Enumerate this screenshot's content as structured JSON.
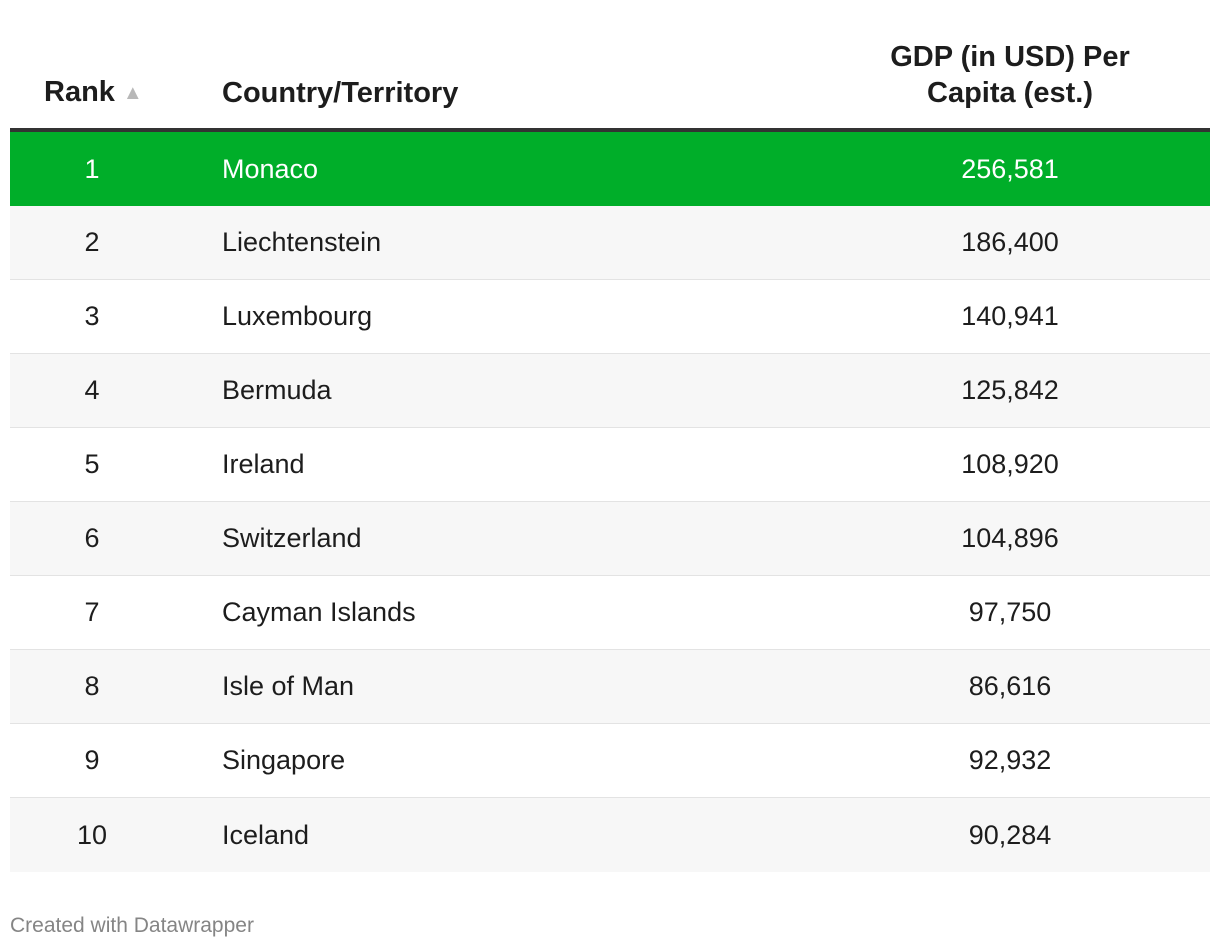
{
  "chart_data": {
    "type": "table",
    "columns": {
      "rank": "Rank",
      "country": "Country/Territory",
      "gdp_line1": "GDP (in USD) Per",
      "gdp_line2": "Capita (est.)"
    },
    "sort_indicator": "▲",
    "rows": [
      {
        "rank": "1",
        "country": "Monaco",
        "gdp": "256,581",
        "value": 256581
      },
      {
        "rank": "2",
        "country": "Liechtenstein",
        "gdp": "186,400",
        "value": 186400
      },
      {
        "rank": "3",
        "country": "Luxembourg",
        "gdp": "140,941",
        "value": 140941
      },
      {
        "rank": "4",
        "country": "Bermuda",
        "gdp": "125,842",
        "value": 125842
      },
      {
        "rank": "5",
        "country": "Ireland",
        "gdp": "108,920",
        "value": 108920
      },
      {
        "rank": "6",
        "country": "Switzerland",
        "gdp": "104,896",
        "value": 104896
      },
      {
        "rank": "7",
        "country": "Cayman Islands",
        "gdp": "97,750",
        "value": 97750
      },
      {
        "rank": "8",
        "country": "Isle of Man",
        "gdp": "86,616",
        "value": 86616
      },
      {
        "rank": "9",
        "country": "Singapore",
        "gdp": "92,932",
        "value": 92932
      },
      {
        "rank": "10",
        "country": "Iceland",
        "gdp": "90,284",
        "value": 90284
      }
    ],
    "highlight_color": "#00ae29"
  },
  "footer": {
    "credit": "Created with Datawrapper"
  }
}
